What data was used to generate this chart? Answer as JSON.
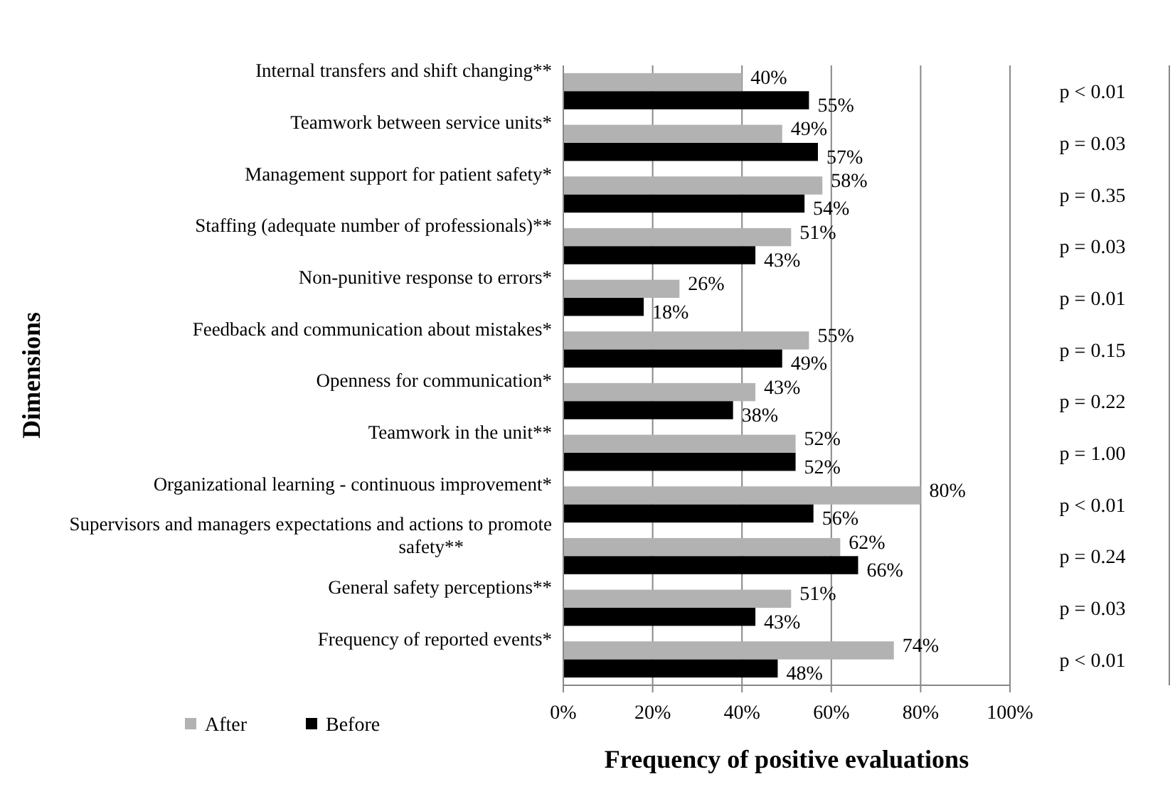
{
  "chart_data": {
    "type": "bar",
    "orientation": "horizontal",
    "xlabel": "Frequency of positive evaluations",
    "ylabel": "Dimensions",
    "categories": [
      "Internal transfers and shift changing**",
      "Teamwork between service units*",
      "Management support for patient safety*",
      "Staffing (adequate number of professionals)**",
      "Non-punitive response to errors*",
      "Feedback and communication about mistakes*",
      "Openness for communication*",
      "Teamwork in the unit**",
      "Organizational learning - continuous improvement*",
      "Supervisors and managers expectations and actions to promote safety**",
      "General safety perceptions**",
      "Frequency of reported events*"
    ],
    "series": [
      {
        "name": "After",
        "color": "#b2b2b2",
        "values": [
          40,
          49,
          58,
          51,
          26,
          55,
          43,
          52,
          80,
          62,
          51,
          74
        ],
        "value_labels": [
          "40%",
          "49%",
          "58%",
          "51%",
          "26%",
          "55%",
          "43%",
          "52%",
          "80%",
          "62%",
          "51%",
          "74%"
        ]
      },
      {
        "name": "Before",
        "color": "#000000",
        "values": [
          55,
          57,
          54,
          43,
          18,
          49,
          38,
          52,
          56,
          66,
          43,
          48
        ],
        "value_labels": [
          "55%",
          "57%",
          "54%",
          "43%",
          "18%",
          "49%",
          "38%",
          "52%",
          "56%",
          "66%",
          "43%",
          "48%"
        ]
      }
    ],
    "xlim": [
      0,
      100
    ],
    "xticks": [
      {
        "value": 0,
        "label": "0%"
      },
      {
        "value": 20,
        "label": "20%"
      },
      {
        "value": 40,
        "label": "40%"
      },
      {
        "value": 60,
        "label": "60%"
      },
      {
        "value": 80,
        "label": "80%"
      },
      {
        "value": 100,
        "label": "100%"
      }
    ],
    "grid": "x",
    "legend": "bottom left",
    "annotations": [
      "p < 0.01",
      "p = 0.03",
      "p = 0.35",
      "p = 0.03",
      "p = 0.01",
      "p = 0.15",
      "p = 0.22",
      "p = 1.00",
      "p < 0.01",
      "p = 0.24",
      "p = 0.03",
      "p < 0.01"
    ]
  }
}
